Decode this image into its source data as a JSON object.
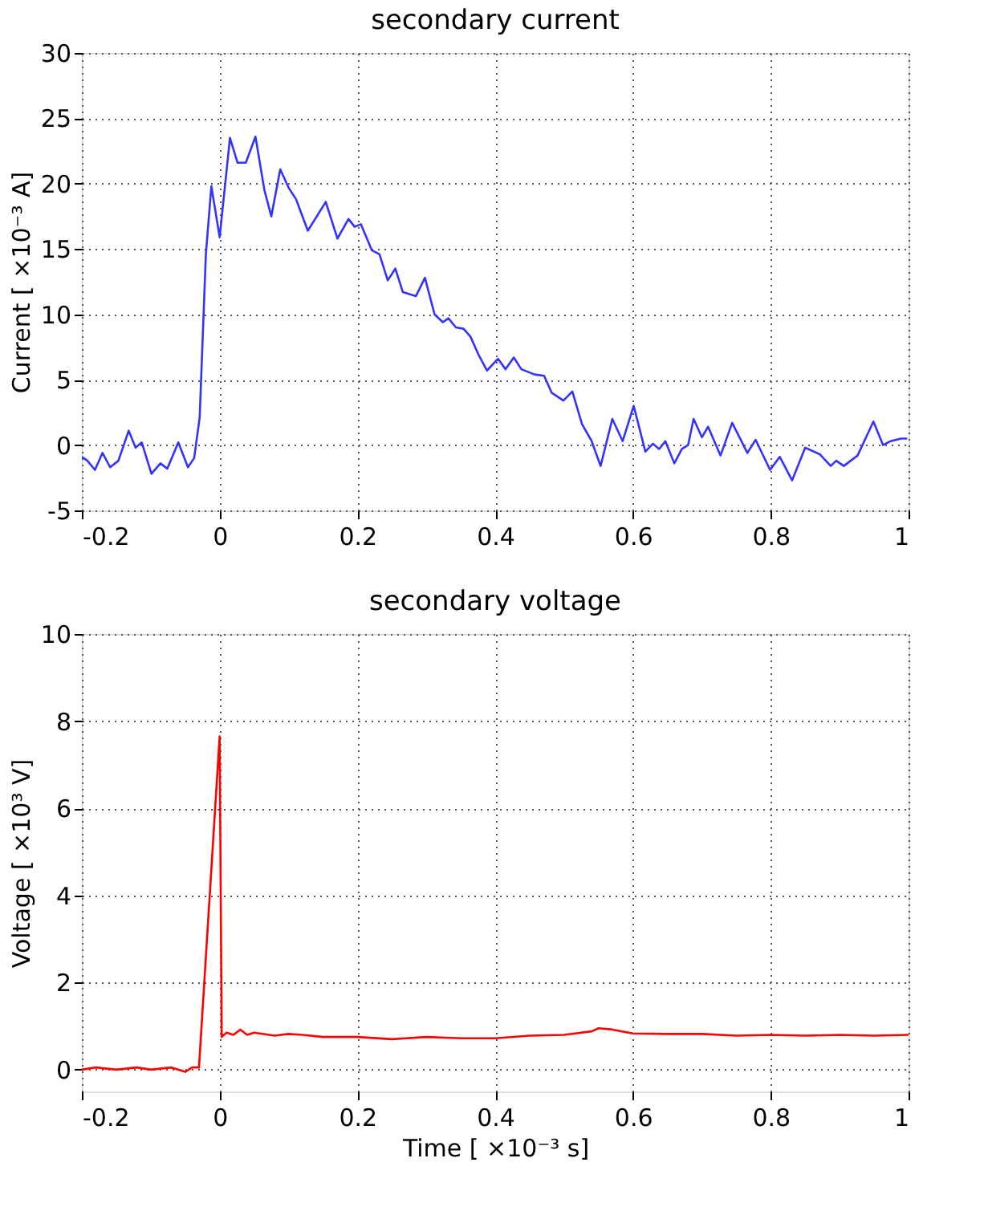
{
  "chart_data": [
    {
      "type": "line",
      "title": "secondary current",
      "ylabel": "Current [ ×10⁻³  A]",
      "xlim": [
        -0.2,
        1
      ],
      "xticks": [
        -0.2,
        0,
        0.2,
        0.4,
        0.6,
        0.8,
        1
      ],
      "ylim": [
        -5,
        30
      ],
      "yticks": [
        -5,
        0,
        5,
        10,
        15,
        20,
        25,
        30
      ],
      "grid": true,
      "line_style": "solid",
      "series": [
        {
          "color": "#3333ff",
          "x": [
            -0.2,
            -0.192,
            -0.181,
            -0.17,
            -0.159,
            -0.147,
            -0.132,
            -0.122,
            -0.113,
            -0.099,
            -0.086,
            -0.076,
            -0.06,
            -0.046,
            -0.037,
            -0.029,
            -0.02,
            -0.012,
            0.0,
            0.015,
            0.026,
            0.038,
            0.052,
            0.065,
            0.075,
            0.088,
            0.1,
            0.111,
            0.128,
            0.154,
            0.171,
            0.187,
            0.196,
            0.205,
            0.221,
            0.232,
            0.244,
            0.255,
            0.266,
            0.285,
            0.298,
            0.312,
            0.324,
            0.332,
            0.343,
            0.354,
            0.364,
            0.375,
            0.388,
            0.404,
            0.415,
            0.427,
            0.438,
            0.457,
            0.471,
            0.482,
            0.499,
            0.512,
            0.526,
            0.54,
            0.553,
            0.57,
            0.585,
            0.601,
            0.618,
            0.629,
            0.638,
            0.647,
            0.66,
            0.671,
            0.68,
            0.688,
            0.7,
            0.709,
            0.727,
            0.744,
            0.766,
            0.778,
            0.799,
            0.813,
            0.831,
            0.85,
            0.871,
            0.887,
            0.895,
            0.906,
            0.926,
            0.949,
            0.963,
            0.974,
            0.989,
            0.998
          ],
          "values": [
            -0.9,
            -1.2,
            -1.9,
            -0.6,
            -1.7,
            -1.2,
            1.1,
            -0.2,
            0.2,
            -2.2,
            -1.4,
            -1.8,
            0.2,
            -1.7,
            -1.0,
            2.1,
            14.6,
            19.8,
            15.9,
            23.5,
            21.6,
            21.6,
            23.6,
            19.5,
            17.5,
            21.1,
            19.7,
            18.8,
            16.4,
            18.6,
            15.8,
            17.3,
            16.7,
            16.9,
            14.9,
            14.6,
            12.6,
            13.5,
            11.7,
            11.4,
            12.8,
            10.0,
            9.4,
            9.7,
            9.0,
            8.9,
            8.3,
            7.0,
            5.7,
            6.6,
            5.8,
            6.7,
            5.8,
            5.4,
            5.3,
            4.0,
            3.4,
            4.1,
            1.6,
            0.3,
            -1.6,
            2.0,
            0.3,
            3.0,
            -0.5,
            0.1,
            -0.3,
            0.3,
            -1.4,
            -0.3,
            0.0,
            2.0,
            0.6,
            1.4,
            -0.8,
            1.7,
            -0.6,
            0.4,
            -1.9,
            -0.9,
            -2.7,
            -0.2,
            -0.7,
            -1.6,
            -1.2,
            -1.6,
            -0.8,
            1.8,
            0.0,
            0.3,
            0.5,
            0.5
          ]
        }
      ]
    },
    {
      "type": "line",
      "title": "secondary voltage",
      "xlabel": "Time [ ×10⁻³  s]",
      "ylabel": "Voltage [ ×10³  V]",
      "xlim": [
        -0.2,
        1
      ],
      "xticks": [
        -0.2,
        0,
        0.2,
        0.4,
        0.6,
        0.8,
        1
      ],
      "ylim": [
        -0.5,
        10
      ],
      "yticks": [
        0,
        2,
        4,
        6,
        8,
        10
      ],
      "grid": true,
      "line_style": "solid",
      "series": [
        {
          "color": "#ff0000",
          "x": [
            -0.2,
            -0.18,
            -0.15,
            -0.12,
            -0.1,
            -0.07,
            -0.05,
            -0.04,
            -0.03,
            0.0,
            0.003,
            0.01,
            0.02,
            0.03,
            0.04,
            0.05,
            0.08,
            0.1,
            0.12,
            0.15,
            0.2,
            0.25,
            0.3,
            0.35,
            0.4,
            0.45,
            0.5,
            0.54,
            0.55,
            0.57,
            0.6,
            0.65,
            0.7,
            0.75,
            0.8,
            0.85,
            0.9,
            0.95,
            1.0
          ],
          "values": [
            0.0,
            0.05,
            0.0,
            0.05,
            0.0,
            0.05,
            -0.05,
            0.05,
            0.05,
            7.65,
            0.75,
            0.85,
            0.8,
            0.92,
            0.8,
            0.85,
            0.78,
            0.82,
            0.8,
            0.75,
            0.75,
            0.7,
            0.75,
            0.72,
            0.72,
            0.78,
            0.8,
            0.88,
            0.95,
            0.92,
            0.83,
            0.82,
            0.82,
            0.78,
            0.8,
            0.78,
            0.8,
            0.78,
            0.8
          ]
        }
      ]
    }
  ]
}
